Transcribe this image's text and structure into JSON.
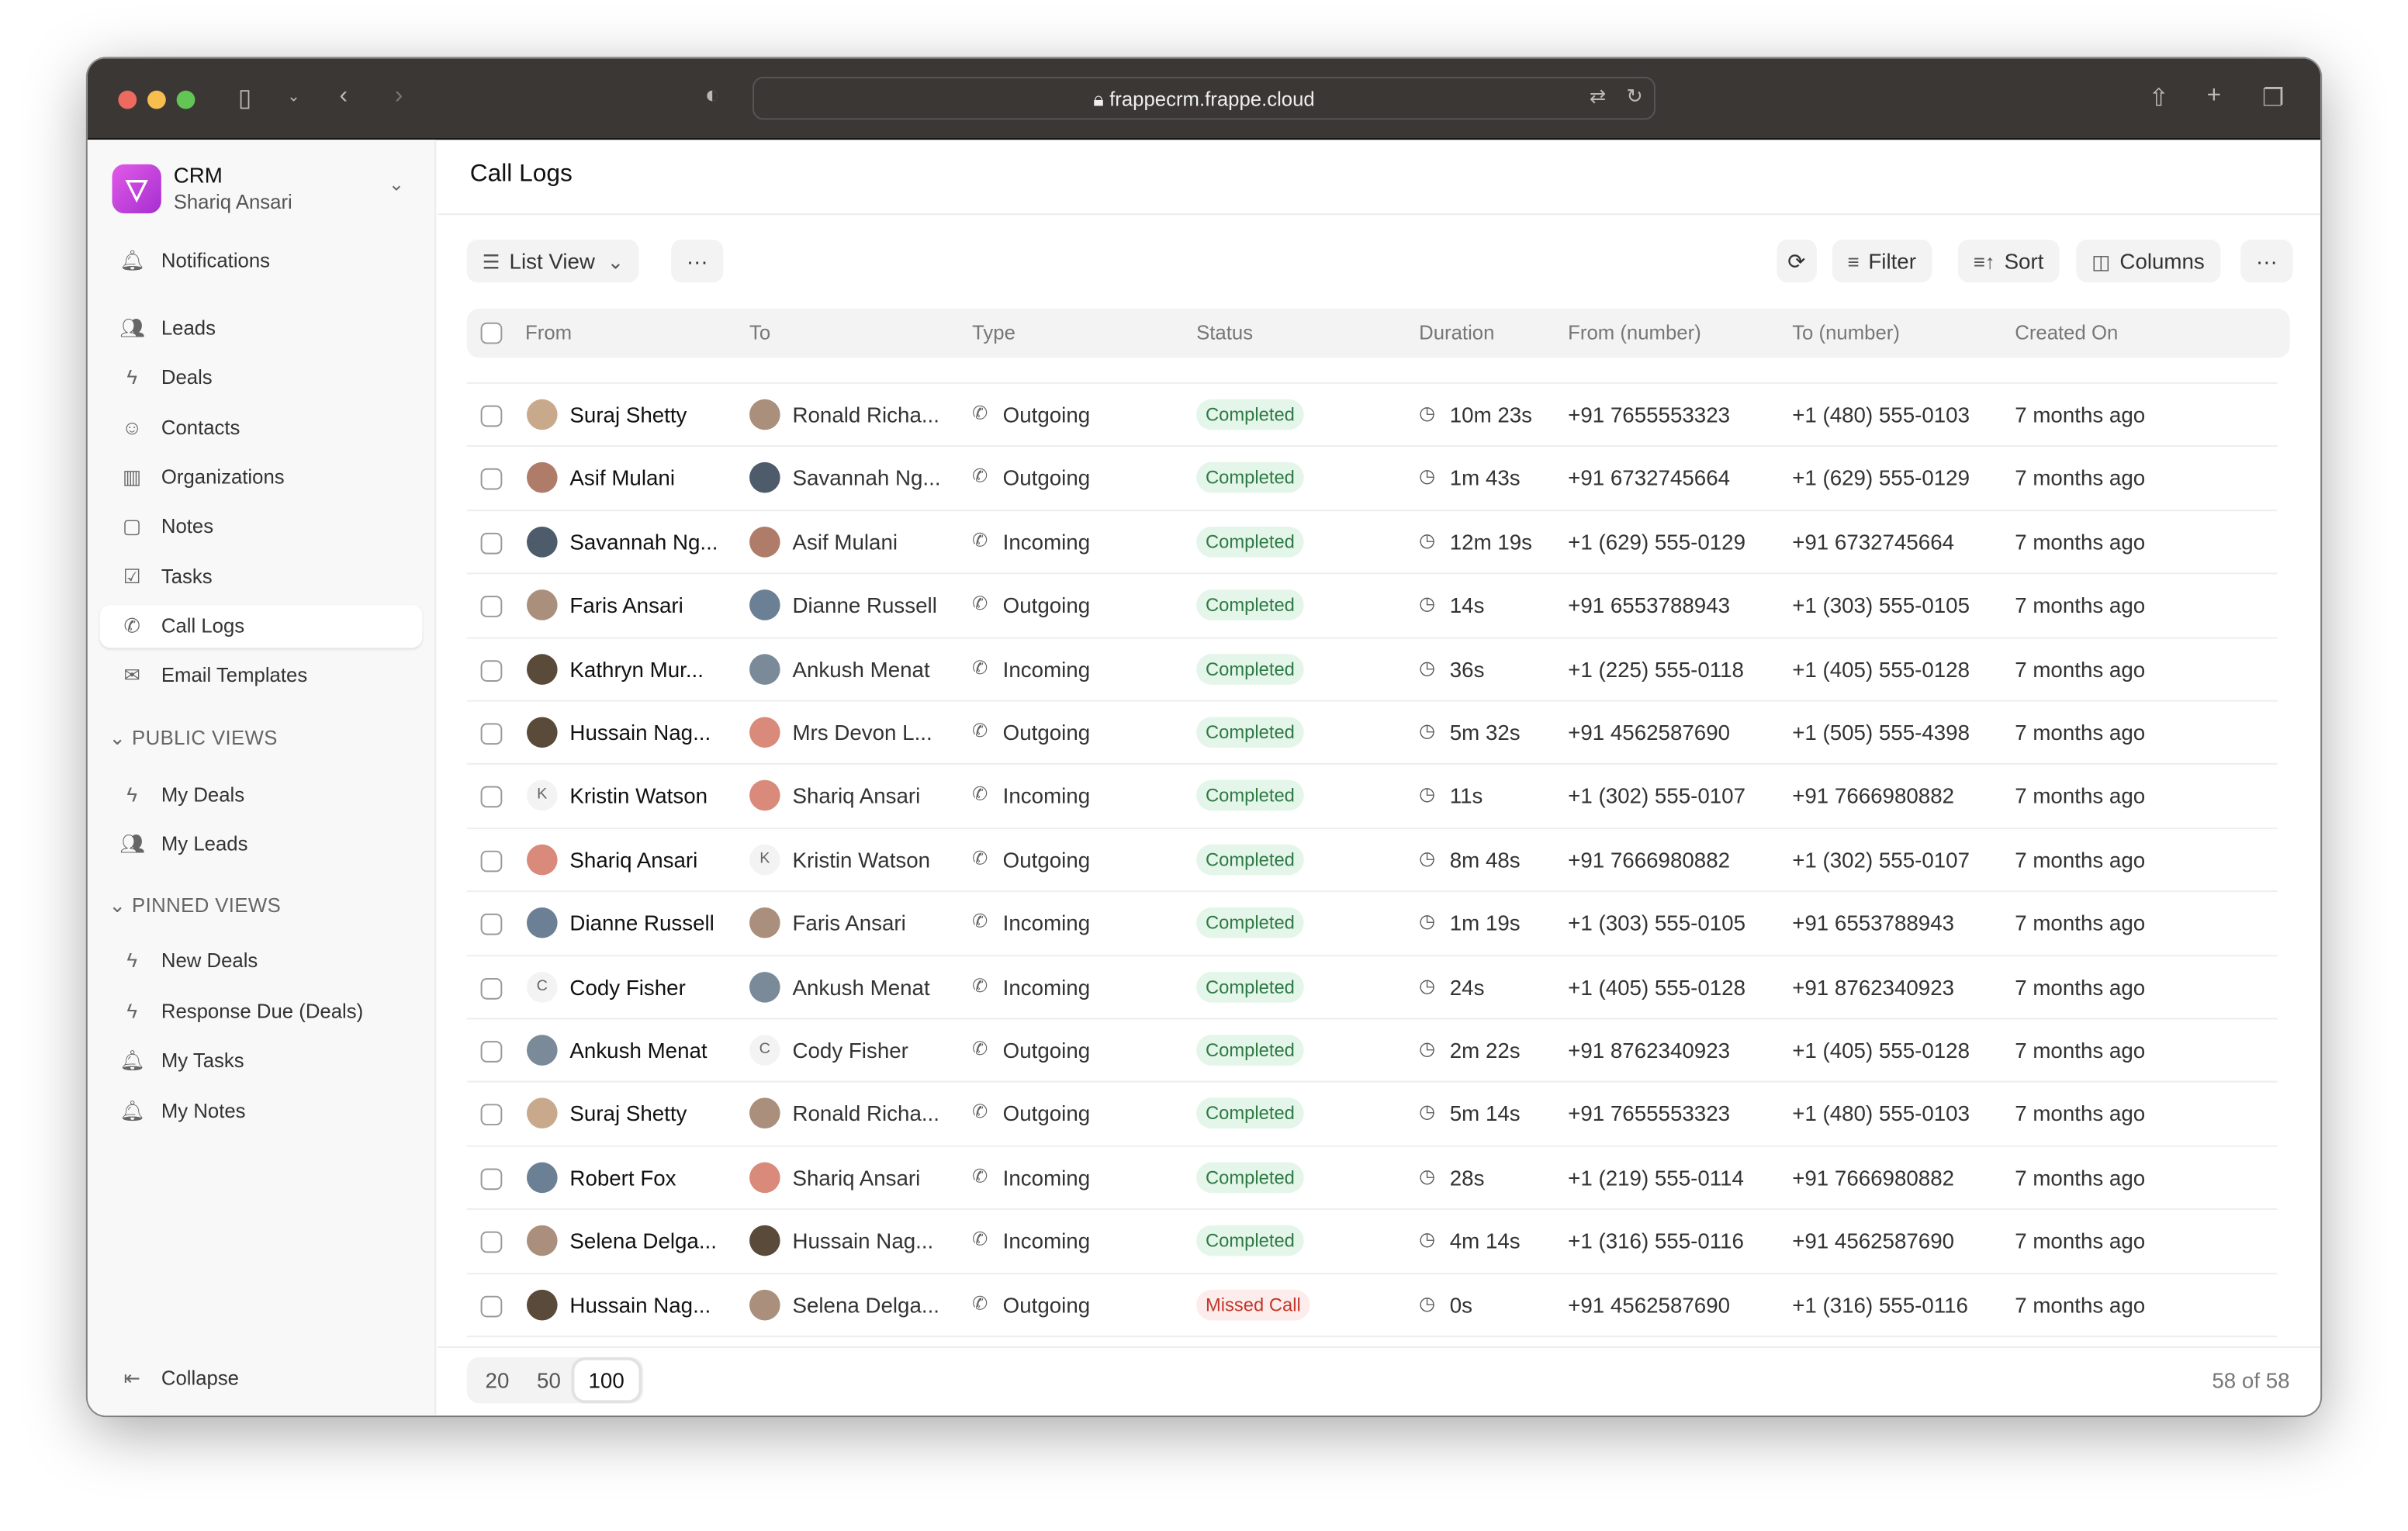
{
  "browser": {
    "url": "frappecrm.frappe.cloud"
  },
  "sidebar": {
    "app_name": "CRM",
    "user": "Shariq Ansari",
    "items": [
      {
        "label": "Notifications",
        "icon": "bell-icon"
      },
      {
        "label": "Leads",
        "icon": "users-icon"
      },
      {
        "label": "Deals",
        "icon": "zap-icon"
      },
      {
        "label": "Contacts",
        "icon": "contact-icon"
      },
      {
        "label": "Organizations",
        "icon": "building-icon"
      },
      {
        "label": "Notes",
        "icon": "file-icon"
      },
      {
        "label": "Tasks",
        "icon": "check-square-icon"
      },
      {
        "label": "Call Logs",
        "icon": "phone-icon",
        "active": true
      },
      {
        "label": "Email Templates",
        "icon": "mail-icon"
      }
    ],
    "public_views_label": "PUBLIC VIEWS",
    "public_views": [
      {
        "label": "My Deals",
        "icon": "zap-icon"
      },
      {
        "label": "My Leads",
        "icon": "users-icon"
      }
    ],
    "pinned_views_label": "PINNED VIEWS",
    "pinned_views": [
      {
        "label": "New Deals",
        "icon": "zap-icon"
      },
      {
        "label": "Response Due (Deals)",
        "icon": "zap-icon"
      },
      {
        "label": "My Tasks",
        "icon": "bell-icon"
      },
      {
        "label": "My Notes",
        "icon": "bell-icon"
      }
    ],
    "collapse": "Collapse"
  },
  "header": {
    "title": "Call Logs"
  },
  "toolbar": {
    "view": "List View",
    "filter": "Filter",
    "sort": "Sort",
    "columns": "Columns"
  },
  "table": {
    "columns": [
      "From",
      "To",
      "Type",
      "Status",
      "Duration",
      "From (number)",
      "To (number)",
      "Created On"
    ],
    "rows": [
      [
        "Suraj Shetty",
        "Ronald Richa...",
        "Outgoing",
        "Completed",
        "10m 23s",
        "+91 7655553323",
        "+1 (480) 555-0103",
        "7 months ago"
      ],
      [
        "Asif Mulani",
        "Savannah Ng...",
        "Outgoing",
        "Completed",
        "1m 43s",
        "+91 6732745664",
        "+1 (629) 555-0129",
        "7 months ago"
      ],
      [
        "Savannah Ng...",
        "Asif Mulani",
        "Incoming",
        "Completed",
        "12m 19s",
        "+1 (629) 555-0129",
        "+91 6732745664",
        "7 months ago"
      ],
      [
        "Faris Ansari",
        "Dianne Russell",
        "Outgoing",
        "Completed",
        "14s",
        "+91 6553788943",
        "+1 (303) 555-0105",
        "7 months ago"
      ],
      [
        "Kathryn Mur...",
        "Ankush Menat",
        "Incoming",
        "Completed",
        "36s",
        "+1 (225) 555-0118",
        "+1 (405) 555-0128",
        "7 months ago"
      ],
      [
        "Hussain Nag...",
        "Mrs Devon L...",
        "Outgoing",
        "Completed",
        "5m 32s",
        "+91 4562587690",
        "+1 (505) 555-4398",
        "7 months ago"
      ],
      [
        "Kristin Watson",
        "Shariq Ansari",
        "Incoming",
        "Completed",
        "11s",
        "+1 (302) 555-0107",
        "+91 7666980882",
        "7 months ago"
      ],
      [
        "Shariq Ansari",
        "Kristin Watson",
        "Outgoing",
        "Completed",
        "8m 48s",
        "+91 7666980882",
        "+1 (302) 555-0107",
        "7 months ago"
      ],
      [
        "Dianne Russell",
        "Faris Ansari",
        "Incoming",
        "Completed",
        "1m 19s",
        "+1 (303) 555-0105",
        "+91 6553788943",
        "7 months ago"
      ],
      [
        "Cody Fisher",
        "Ankush Menat",
        "Incoming",
        "Completed",
        "24s",
        "+1 (405) 555-0128",
        "+91 8762340923",
        "7 months ago"
      ],
      [
        "Ankush Menat",
        "Cody Fisher",
        "Outgoing",
        "Completed",
        "2m 22s",
        "+91 8762340923",
        "+1 (405) 555-0128",
        "7 months ago"
      ],
      [
        "Suraj Shetty",
        "Ronald Richa...",
        "Outgoing",
        "Completed",
        "5m 14s",
        "+91 7655553323",
        "+1 (480) 555-0103",
        "7 months ago"
      ],
      [
        "Robert Fox",
        "Shariq Ansari",
        "Incoming",
        "Completed",
        "28s",
        "+1 (219) 555-0114",
        "+91 7666980882",
        "7 months ago"
      ],
      [
        "Selena Delga...",
        "Hussain Nag...",
        "Incoming",
        "Completed",
        "4m 14s",
        "+1 (316) 555-0116",
        "+91 4562587690",
        "7 months ago"
      ],
      [
        "Hussain Nag...",
        "Selena Delga...",
        "Outgoing",
        "Missed Call",
        "0s",
        "+91 4562587690",
        "+1 (316) 555-0116",
        "7 months ago"
      ]
    ]
  },
  "letter_avatars": {
    "Kristin Watson": "K",
    "Cody Fisher": "C"
  },
  "pagination": {
    "sizes": [
      "20",
      "50",
      "100"
    ],
    "selected": "100",
    "count": "58 of 58"
  },
  "colors": {
    "completed_bg": "#e4f5e9",
    "completed_text": "#2f7a45",
    "missed_bg": "#fdecec",
    "missed_text": "#c0392b",
    "brand": "#c944e0"
  }
}
